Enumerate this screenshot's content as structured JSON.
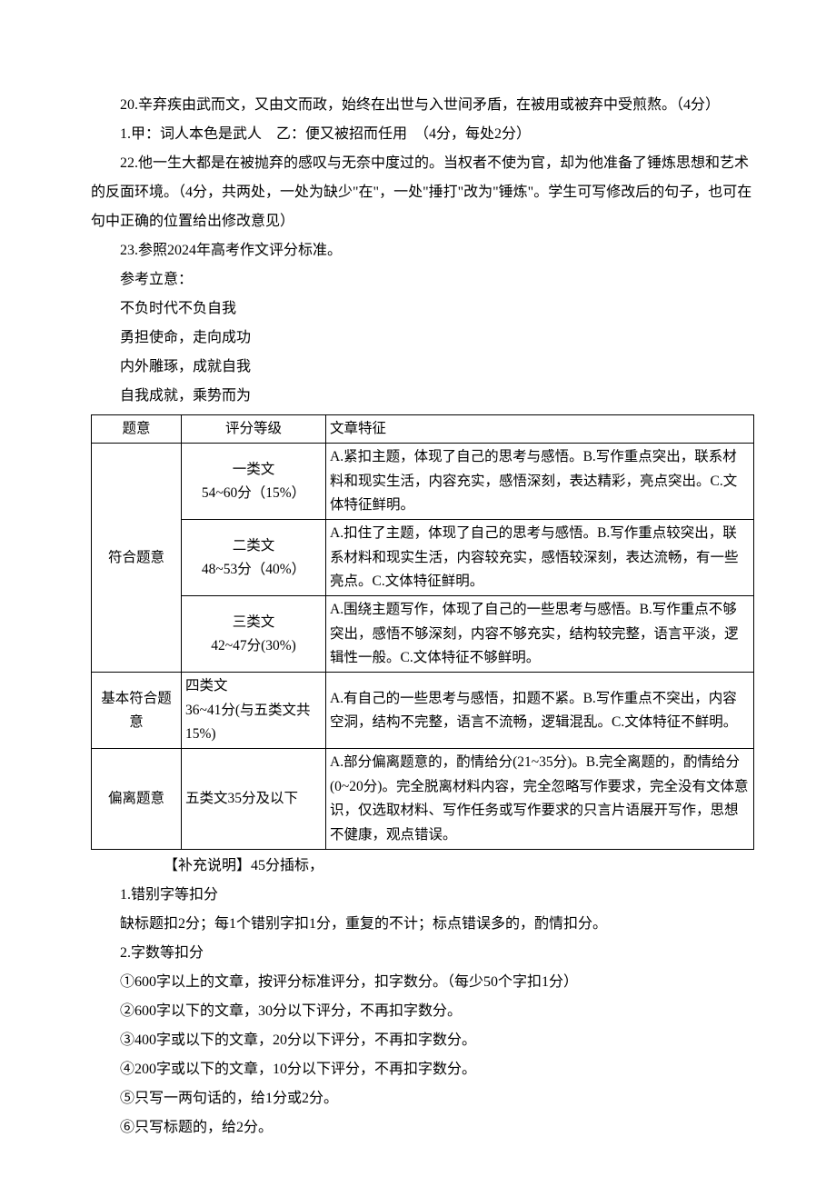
{
  "paragraphs_top": [
    "20.辛弃疾由武而文，又由文而政，始终在出世与入世间矛盾，在被用或被弃中受煎熬。（4分）",
    "1.甲：词人本色是武人　乙：便又被招而任用　（4分，每处2分）",
    "22.他一生大都是在被抛弃的感叹与无奈中度过的。当权者不使为官，却为他准备了锤炼思想和艺术的反面环境。（4分，共两处，一处为缺少\"在\"，一处\"捶打\"改为\"锤炼\"。学生可写修改后的句子，也可在句中正确的位置给出修改意见）",
    "23.参照2024年高考作文评分标准。",
    "参考立意：",
    "不负时代不负自我",
    "勇担使命，走向成功",
    "内外雕琢，成就自我",
    "自我成就，乘势而为"
  ],
  "table": {
    "headers": [
      "题意",
      "评分等级",
      "文章特征"
    ],
    "rows": [
      {
        "topic": "符合题意",
        "topic_rowspan": 3,
        "grade": "一类文\n54~60分（15%）",
        "feature": "A.紧扣主题，体现了自己的思考与感悟。B.写作重点突出，联系材料和现实生活，内容充实，感悟深刻，表达精彩，亮点突出。C.文体特征鲜明。"
      },
      {
        "grade": "二类文\n48~53分（40%）",
        "feature": "A.扣住了主题，体现了自己的思考与感悟。B.写作重点较突出，联系材料和现实生活，内容较充实，感悟较深刻，表达流畅，有一些亮点。C.文体特征鲜明。"
      },
      {
        "grade": "三类文\n42~47分(30%)",
        "feature": "A.围绕主题写作，体现了自己的一些思考与感悟。B.写作重点不够突出，感悟不够深刻，内容不够充实，结构较完整，语言平淡，逻辑性一般。C.文体特征不够鲜明。"
      },
      {
        "topic": "基本符合题意",
        "topic_rowspan": 1,
        "grade": "四类文\n36~41分(与五类文共15%)",
        "feature": "A.有自己的一些思考与感悟，扣题不紧。B.写作重点不突出，内容空洞，结构不完整，语言不流畅，逻辑混乱。C.文体特征不鲜明。"
      },
      {
        "topic": "偏离题意",
        "topic_rowspan": 1,
        "grade": "五类文35分及以下",
        "feature": "A.部分偏离题意的，酌情给分(21~35分)。B.完全离题的，酌情给分(0~20分)。完全脱离材料内容，完全忽略写作要求，完全没有文体意识，仅选取材料、写作任务或写作要求的只言片语展开写作，思想不健康，观点错误。"
      }
    ]
  },
  "paragraphs_bottom": [
    "【补充说明】45分插标，",
    "1.错别字等扣分",
    "缺标题扣2分；每1个错别字扣1分，重复的不计；标点错误多的，酌情扣分。",
    "2.字数等扣分",
    "①600字以上的文章，按评分标准评分，扣字数分。（每少50个字扣1分）",
    "②600字以下的文章，30分以下评分，不再扣字数分。",
    "③400字或以下的文章，20分以下评分，不再扣字数分。",
    "④200字或以下的文章，10分以下评分，不再扣字数分。",
    "⑤只写一两句话的，给1分或2分。",
    "⑥只写标题的，给2分。"
  ]
}
